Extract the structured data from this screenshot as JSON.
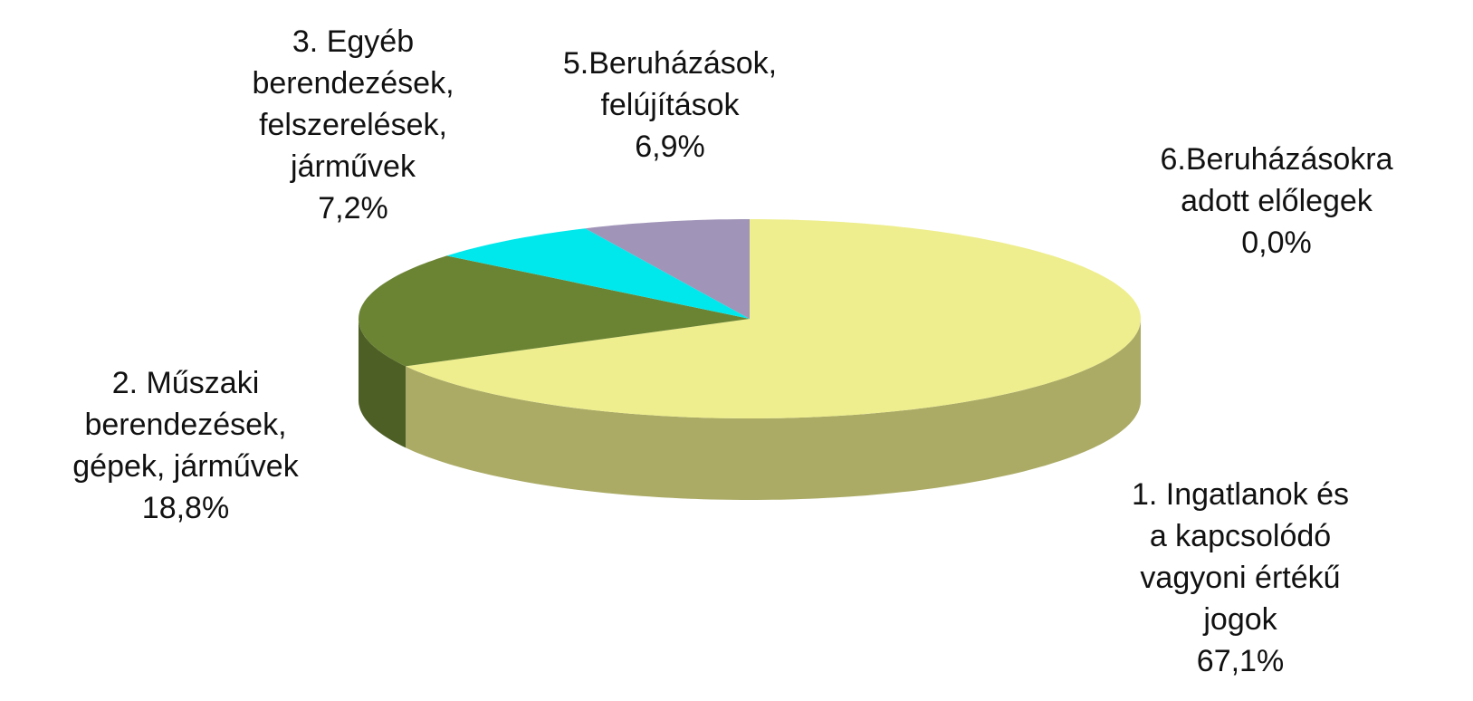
{
  "chart_data": {
    "type": "pie3d",
    "categories": [
      "1. Ingatlanok és\na kapcsolódó\nvagyoni értékű\njogok",
      "2. Műszaki\nberendezések,\ngépek, járművek",
      "3. Egyéb\nberendezések,\nfelszerelések,\njárművek",
      "5.Beruházások,\nfelújítások",
      "6.Beruházásokra\nadott előlegek"
    ],
    "values": [
      67.1,
      18.8,
      7.2,
      6.9,
      0.0
    ],
    "value_labels": [
      "67,1%",
      "18,8%",
      "7,2%",
      "6,9%",
      "0,0%"
    ],
    "colors": [
      "#eeee8e",
      "#6b8434",
      "#00e8ec",
      "#a094b8",
      "#c0504d"
    ]
  }
}
